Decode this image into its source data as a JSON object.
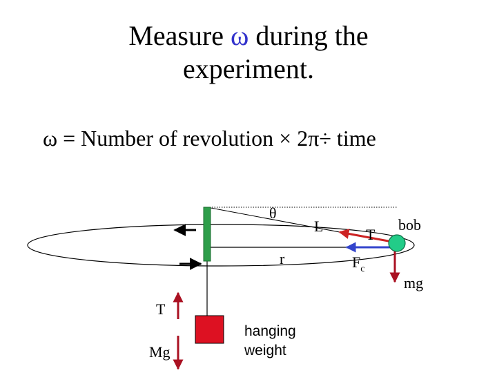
{
  "title": {
    "line1_before": "Measure ",
    "omega": "ω",
    "line1_after": " during the",
    "line2": "experiment."
  },
  "formula": "ω = Number of revolution × 2π÷ time",
  "labels": {
    "theta": "θ",
    "L": "L",
    "T_top": "T",
    "bob": "bob",
    "r": "r",
    "Fc_main": "F",
    "Fc_sub": "c",
    "mg": "mg",
    "T_left": "T",
    "Mg": "Mg",
    "hanging_weight_line1": "hanging",
    "hanging_weight_line2": "weight"
  },
  "colors": {
    "omega": "#3333cc",
    "tube": "#2e9e4a",
    "bob": "#22cc88",
    "tension_arrow": "#cc2222",
    "fc_arrow": "#3344cc",
    "weight_arrow": "#aa1122",
    "hanging_weight": "#dd1122"
  }
}
